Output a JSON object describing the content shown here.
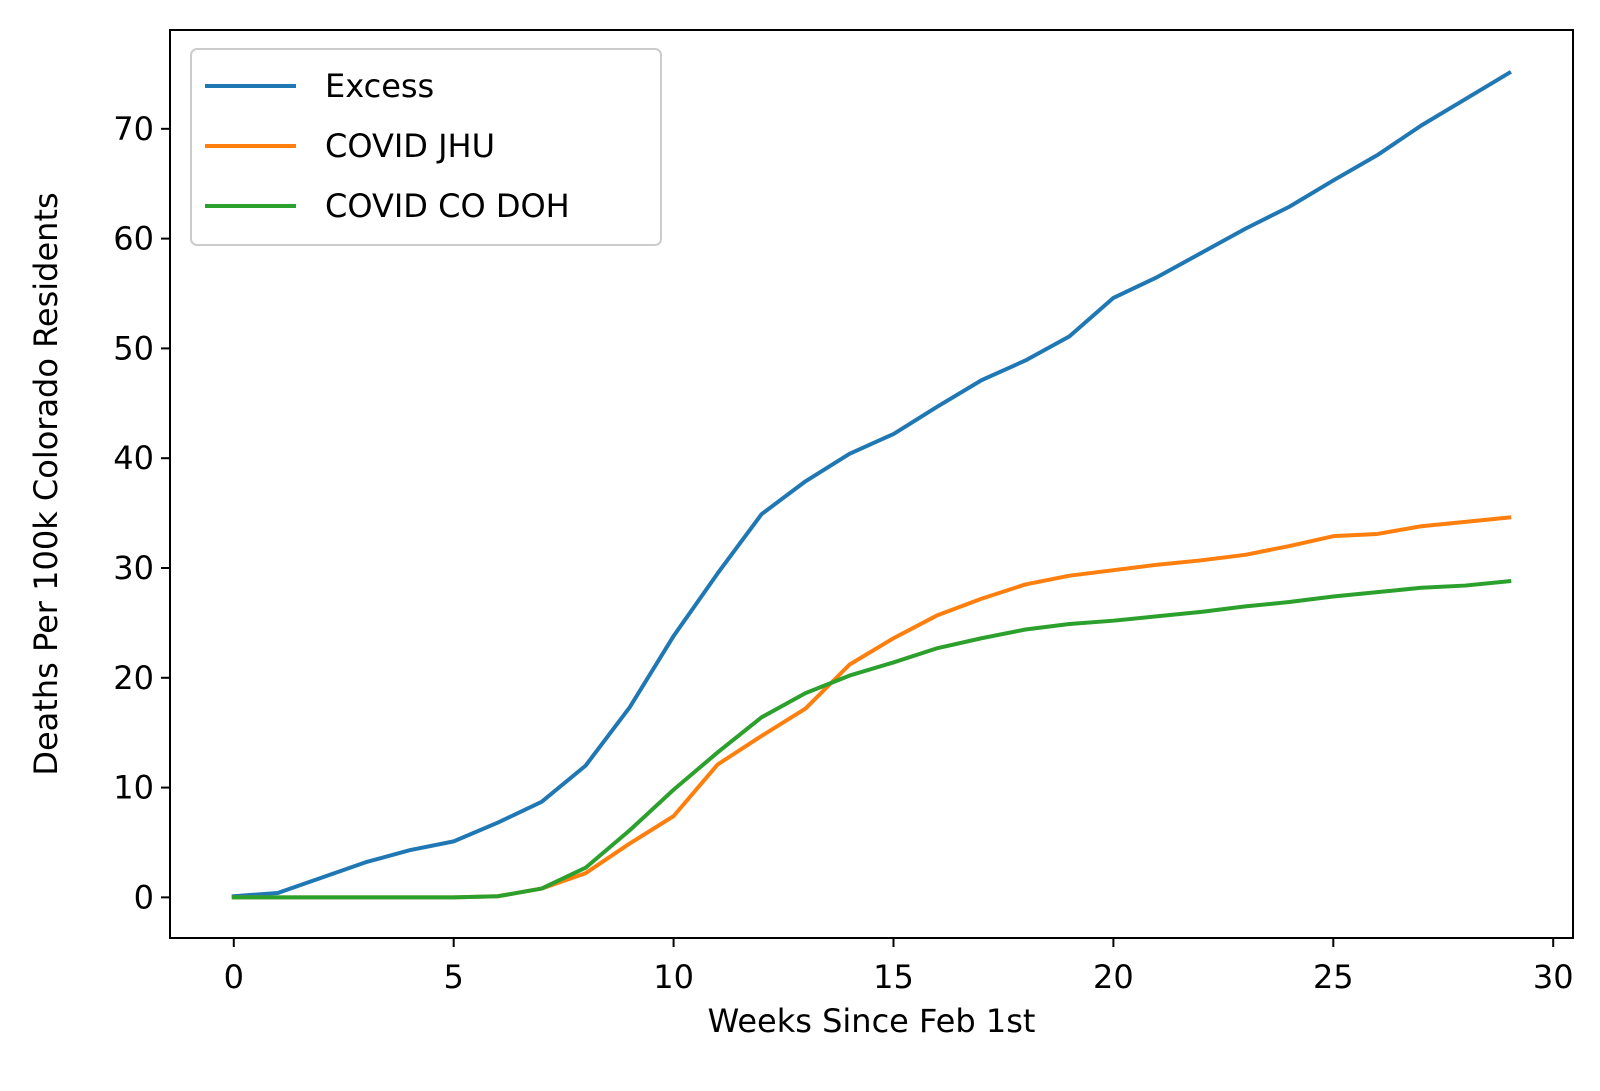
{
  "chart_data": {
    "type": "line",
    "title": "",
    "xlabel": "Weeks Since Feb 1st",
    "ylabel": "Deaths Per 100k Colorado Residents",
    "xlim": [
      -1.45,
      30.45
    ],
    "ylim": [
      -3.7,
      79
    ],
    "xticks": [
      0,
      5,
      10,
      15,
      20,
      25,
      30
    ],
    "yticks": [
      0,
      10,
      20,
      30,
      40,
      50,
      60,
      70
    ],
    "grid": false,
    "legend_position": "upper-left",
    "x": [
      0,
      1,
      2,
      3,
      4,
      5,
      6,
      7,
      8,
      9,
      10,
      11,
      12,
      13,
      14,
      15,
      16,
      17,
      18,
      19,
      20,
      21,
      22,
      23,
      24,
      25,
      26,
      27,
      28,
      29
    ],
    "series": [
      {
        "name": "Excess",
        "color": "#1f77b4",
        "values": [
          0.1,
          0.4,
          1.8,
          3.2,
          4.3,
          5.1,
          6.8,
          8.7,
          12.0,
          17.3,
          23.8,
          29.5,
          34.9,
          37.9,
          40.4,
          42.2,
          44.7,
          47.1,
          48.9,
          51.1,
          54.6,
          56.5,
          58.7,
          60.9,
          62.9,
          65.3,
          67.6,
          70.3,
          72.7,
          75.1
        ]
      },
      {
        "name": "COVID JHU",
        "color": "#ff7f0e",
        "values": [
          0.0,
          0.0,
          0.0,
          0.0,
          0.0,
          0.0,
          0.1,
          0.8,
          2.2,
          4.9,
          7.4,
          12.1,
          14.7,
          17.2,
          21.2,
          23.6,
          25.7,
          27.2,
          28.5,
          29.3,
          29.8,
          30.3,
          30.7,
          31.2,
          32.0,
          32.9,
          33.1,
          33.8,
          34.2,
          34.6
        ]
      },
      {
        "name": "COVID CO DOH",
        "color": "#2ca02c",
        "values": [
          0.0,
          0.0,
          0.0,
          0.0,
          0.0,
          0.0,
          0.1,
          0.8,
          2.7,
          6.1,
          9.8,
          13.2,
          16.4,
          18.6,
          20.2,
          21.4,
          22.7,
          23.6,
          24.4,
          24.9,
          25.2,
          25.6,
          26.0,
          26.5,
          26.9,
          27.4,
          27.8,
          28.2,
          28.4,
          28.8
        ]
      }
    ]
  }
}
